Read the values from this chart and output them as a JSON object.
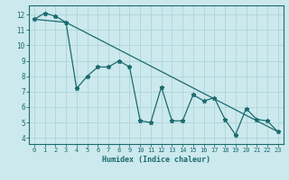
{
  "xlabel": "Humidex (Indice chaleur)",
  "ylabel": "",
  "bg_color": "#cce9ed",
  "grid_color": "#aed4d8",
  "line_color": "#1a6b6e",
  "xlim": [
    -0.5,
    23.5
  ],
  "ylim": [
    3.6,
    12.6
  ],
  "xticks": [
    0,
    1,
    2,
    3,
    4,
    5,
    6,
    7,
    8,
    9,
    10,
    11,
    12,
    13,
    14,
    15,
    16,
    17,
    18,
    19,
    20,
    21,
    22,
    23
  ],
  "yticks": [
    4,
    5,
    6,
    7,
    8,
    9,
    10,
    11,
    12
  ],
  "line1_x": [
    0,
    1,
    2,
    3,
    4,
    5,
    6,
    7,
    8,
    9,
    10,
    11,
    12,
    13,
    14,
    15,
    16,
    17,
    18,
    19,
    20,
    21,
    22,
    23
  ],
  "line1_y": [
    11.7,
    12.1,
    11.9,
    11.5,
    7.2,
    8.0,
    8.6,
    8.6,
    9.0,
    8.6,
    5.1,
    5.0,
    7.3,
    5.1,
    5.1,
    6.8,
    6.4,
    6.6,
    5.2,
    4.2,
    5.9,
    5.2,
    5.1,
    4.4
  ],
  "line2_x": [
    0,
    3,
    23
  ],
  "line2_y": [
    11.7,
    11.5,
    4.4
  ],
  "figsize": [
    3.2,
    2.0
  ],
  "dpi": 100
}
